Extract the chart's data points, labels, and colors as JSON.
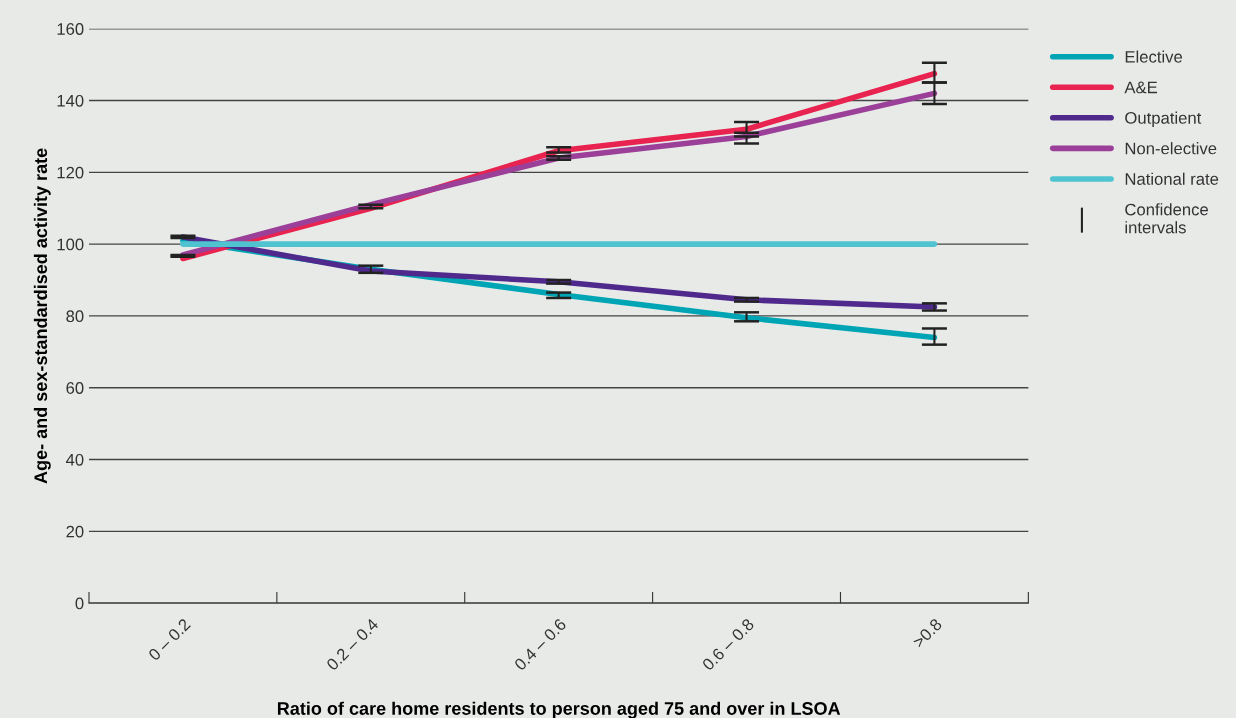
{
  "chart_data": {
    "type": "line",
    "xlabel": "Ratio of care home residents to person aged 75 and over in LSOA",
    "ylabel": "Age- and sex-standardised activity rate",
    "categories": [
      "0 – 0.2",
      "0.2 – 0.4",
      "0.4 – 0.6",
      "0.6 – 0.8",
      ">0.8"
    ],
    "series": [
      {
        "name": "Elective",
        "color": "#00a5b5",
        "values": [
          101,
          93,
          86,
          79.5,
          74
        ],
        "errors": [
          null,
          [
            92,
            94
          ],
          [
            85,
            86.5
          ],
          [
            78.5,
            81
          ],
          [
            72,
            76.5
          ]
        ]
      },
      {
        "name": "A&E",
        "color": "#e8234f",
        "values": [
          96,
          110,
          126,
          132,
          147.5
        ],
        "errors": [
          [
            96.5,
            97
          ],
          null,
          [
            125.5,
            127
          ],
          [
            131,
            134
          ],
          [
            145,
            150.5
          ]
        ]
      },
      {
        "name": "Outpatient",
        "color": "#4f2a8c",
        "values": [
          102,
          92.5,
          89.5,
          84.5,
          82.5
        ],
        "errors": [
          [
            101.7,
            102.3
          ],
          null,
          [
            89,
            90
          ],
          [
            84,
            85
          ],
          [
            81.5,
            83.5
          ]
        ]
      },
      {
        "name": "Non-elective",
        "color": "#9b3f98",
        "values": [
          97,
          111,
          124,
          130,
          142
        ],
        "errors": [
          null,
          [
            110,
            111
          ],
          [
            123.5,
            124.5
          ],
          [
            128,
            130
          ],
          [
            139,
            145
          ]
        ]
      },
      {
        "name": "National rate",
        "color": "#4fc3d0",
        "values": [
          100,
          100,
          100,
          100,
          100
        ]
      }
    ],
    "annotations": [
      "Confidence intervals"
    ],
    "ylim": [
      0,
      160
    ],
    "yticks": [
      0,
      20,
      40,
      60,
      80,
      100,
      120,
      140,
      160
    ],
    "grid": "y",
    "legend": "right",
    "marker": "none",
    "line_style": "solid"
  }
}
